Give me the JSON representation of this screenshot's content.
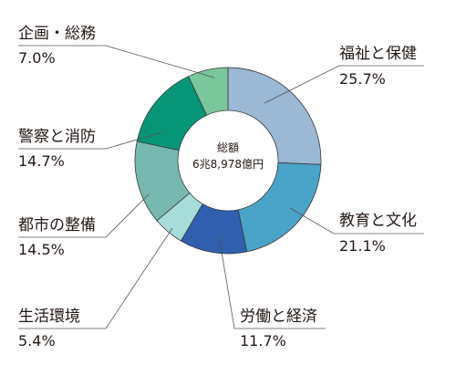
{
  "chart_data": {
    "type": "pie",
    "donut": true,
    "center_label": {
      "line1": "総額",
      "line2": "6兆8,978億円"
    },
    "slices": [
      {
        "name": "福祉と保健",
        "value": 25.7,
        "label": "25.7%",
        "color": "#9bb8d5"
      },
      {
        "name": "教育と文化",
        "value": 21.1,
        "label": "21.1%",
        "color": "#4aa3c9"
      },
      {
        "name": "労働と経済",
        "value": 11.7,
        "label": "11.7%",
        "color": "#2f5fae"
      },
      {
        "name": "生活環境",
        "value": 5.4,
        "label": "5.4%",
        "color": "#a6dcd9"
      },
      {
        "name": "都市の整備",
        "value": 14.5,
        "label": "14.5%",
        "color": "#76b8b0"
      },
      {
        "name": "警察と消防",
        "value": 14.7,
        "label": "14.7%",
        "color": "#079578"
      },
      {
        "name": "企画・総務",
        "value": 7.0,
        "label": "7.0%",
        "color": "#79c79a"
      }
    ]
  }
}
